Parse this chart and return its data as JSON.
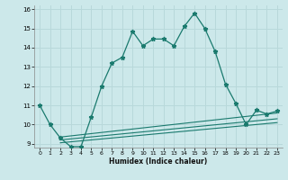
{
  "xlabel": "Humidex (Indice chaleur)",
  "ylabel": "",
  "bg_color": "#cce8ea",
  "grid_color": "#b8d8da",
  "line_color": "#1a7a6e",
  "xlim": [
    -0.5,
    23.5
  ],
  "ylim": [
    8.8,
    16.2
  ],
  "xticks": [
    0,
    1,
    2,
    3,
    4,
    5,
    6,
    7,
    8,
    9,
    10,
    11,
    12,
    13,
    14,
    15,
    16,
    17,
    18,
    19,
    20,
    21,
    22,
    23
  ],
  "yticks": [
    9,
    10,
    11,
    12,
    13,
    14,
    15,
    16
  ],
  "main_x": [
    0,
    1,
    2,
    3,
    4,
    5,
    6,
    7,
    8,
    9,
    10,
    11,
    12,
    13,
    14,
    15,
    16,
    17,
    18,
    19,
    20,
    21,
    22,
    23
  ],
  "main_y": [
    11.0,
    10.0,
    9.3,
    8.85,
    8.85,
    10.4,
    12.0,
    13.2,
    13.5,
    14.85,
    14.1,
    14.45,
    14.45,
    14.1,
    15.1,
    15.8,
    15.0,
    13.8,
    12.1,
    11.1,
    10.0,
    10.75,
    10.55,
    10.7
  ],
  "line2_x": [
    2,
    23
  ],
  "line2_y": [
    9.35,
    10.6
  ],
  "line3_x": [
    2,
    23
  ],
  "line3_y": [
    9.2,
    10.3
  ],
  "line4_x": [
    2,
    23
  ],
  "line4_y": [
    9.05,
    10.1
  ]
}
